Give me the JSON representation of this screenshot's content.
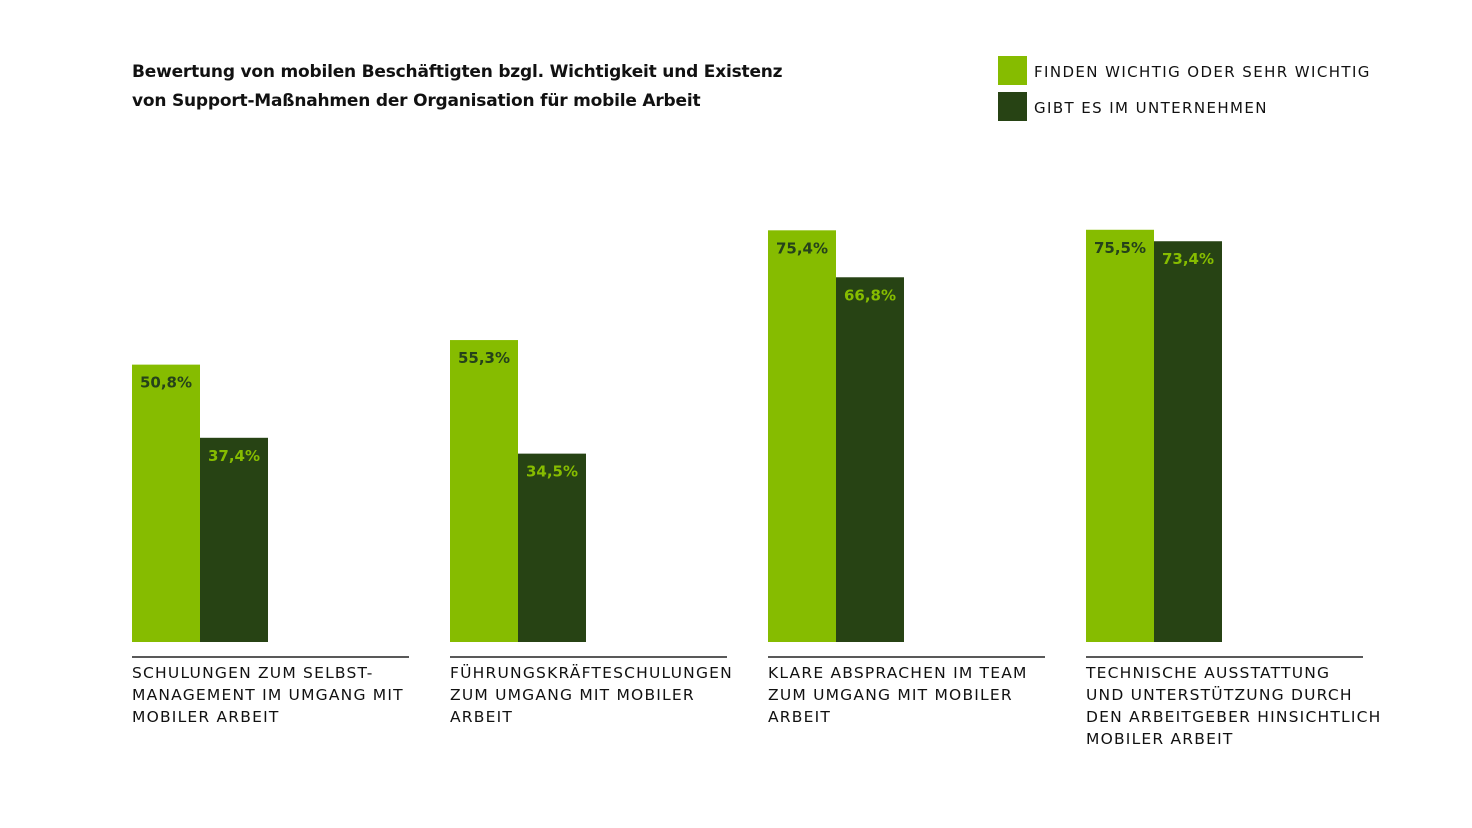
{
  "chart_data": {
    "type": "bar",
    "title_lines": [
      "Bewertung von mobilen Beschäftigten bzgl. Wichtigkeit und Existenz",
      "von Support-Maßnahmen der Organisation für mobile Arbeit"
    ],
    "ylim": [
      0,
      100
    ],
    "categories": [
      [
        "SCHULUNGEN ZUM SELBST-",
        "MANAGEMENT IM UMGANG MIT",
        "MOBILER ARBEIT"
      ],
      [
        "FÜHRUNGSKRÄFTESCHULUNGEN",
        "ZUM UMGANG MIT MOBILER",
        "ARBEIT"
      ],
      [
        "KLARE ABSPRACHEN IM TEAM",
        "ZUM UMGANG MIT MOBILER",
        "ARBEIT"
      ],
      [
        "TECHNISCHE AUSSTATTUNG",
        "UND UNTERSTÜTZUNG DURCH",
        "DEN ARBEITGEBER HINSICHTLICH",
        "MOBILER ARBEIT"
      ]
    ],
    "series": [
      {
        "name": "FINDEN WICHTIG ODER SEHR WICHTIG",
        "color": "#86bc00",
        "label_color": "#25421a",
        "values": [
          50.8,
          55.3,
          75.4,
          75.5
        ],
        "labels": [
          "50,8%",
          "55,3%",
          "75,4%",
          "75,5%"
        ]
      },
      {
        "name": "GIBT ES IM UNTERNEHMEN",
        "color": "#274314",
        "label_color": "#86bc00",
        "values": [
          37.4,
          34.5,
          66.8,
          73.4
        ],
        "labels": [
          "37,4%",
          "34,5%",
          "66,8%",
          "73,4%"
        ]
      }
    ],
    "legend_position": "top-right",
    "grid": false
  }
}
